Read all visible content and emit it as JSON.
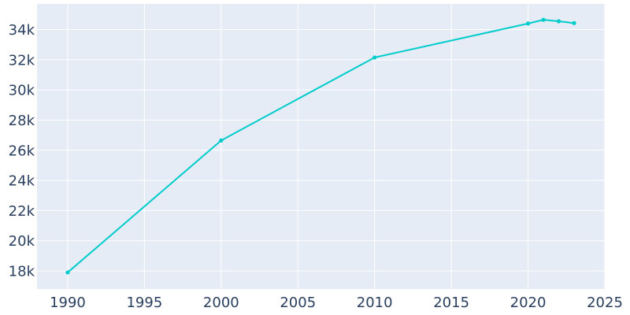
{
  "chart_data": {
    "type": "line",
    "title": "",
    "xlabel": "",
    "ylabel": "",
    "xlim": [
      1988,
      2025
    ],
    "ylim": [
      16800,
      35700
    ],
    "grid": true,
    "x_ticks": [
      1990,
      1995,
      2000,
      2005,
      2010,
      2015,
      2020,
      2025
    ],
    "x_tick_labels": [
      "1990",
      "1995",
      "2000",
      "2005",
      "2010",
      "2015",
      "2020",
      "2025"
    ],
    "y_ticks": [
      18000,
      20000,
      22000,
      24000,
      26000,
      28000,
      30000,
      32000,
      34000
    ],
    "y_tick_labels": [
      "18k",
      "20k",
      "22k",
      "24k",
      "26k",
      "28k",
      "30k",
      "32k",
      "34k"
    ],
    "series": [
      {
        "x": [
          1990,
          2000,
          2010,
          2020,
          2021,
          2022,
          2023
        ],
        "values": [
          17900,
          26650,
          32150,
          34400,
          34650,
          34550,
          34430
        ]
      }
    ],
    "colors": {
      "line": "#00cccc",
      "plot_background": "#e5ecf6",
      "grid": "#ffffff",
      "tick_text": "#2a3f5f"
    }
  }
}
